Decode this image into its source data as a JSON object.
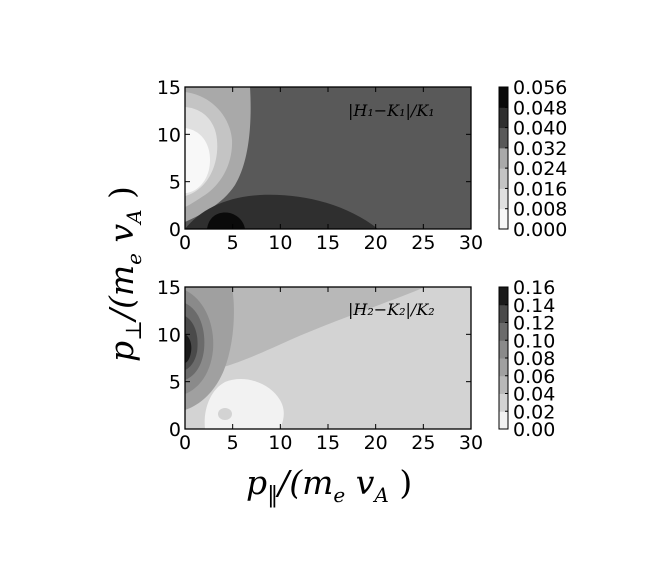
{
  "chart_data": [
    {
      "type": "heatmap",
      "panel": "top",
      "annotation": "|H₁−K₁|/K₁",
      "xlim": [
        0,
        30
      ],
      "ylim": [
        0,
        15
      ],
      "xticks": [
        "0",
        "5",
        "10",
        "15",
        "20",
        "25",
        "30"
      ],
      "yticks": [
        "0",
        "5",
        "10",
        "15"
      ],
      "colorbar": {
        "levels": [
          0.0,
          0.008,
          0.016,
          0.024,
          0.032,
          0.04,
          0.048,
          0.056
        ],
        "tick_labels": [
          "0.000",
          "0.008",
          "0.016",
          "0.024",
          "0.032",
          "0.040",
          "0.048",
          "0.056"
        ]
      },
      "background_level": 0.04,
      "regions": [
        {
          "level": 0.024,
          "description": "lighter lobe near p_par 0-7, p_perp 4-15"
        },
        {
          "level": 0.016,
          "description": "inner lobe near p_par 0-4, p_perp 6-14"
        },
        {
          "level": 0.008,
          "description": "core near p_par 0-2, p_perp 7-12"
        },
        {
          "level": 0.048,
          "description": "dark band near p_par 2-20, p_perp 0-4"
        },
        {
          "level": 0.056,
          "description": "darkest spot near p_par 4, p_perp 0.8"
        }
      ]
    },
    {
      "type": "heatmap",
      "panel": "bottom",
      "annotation": "|H₂−K₂|/K₂",
      "xlim": [
        0,
        30
      ],
      "ylim": [
        0,
        15
      ],
      "xticks": [
        "0",
        "5",
        "10",
        "15",
        "20",
        "25",
        "30"
      ],
      "yticks": [
        "0",
        "5",
        "10",
        "15"
      ],
      "colorbar": {
        "levels": [
          0.0,
          0.02,
          0.04,
          0.06,
          0.08,
          0.1,
          0.12,
          0.14,
          0.16
        ],
        "tick_labels": [
          "0.00",
          "0.02",
          "0.04",
          "0.06",
          "0.08",
          "0.10",
          "0.12",
          "0.14",
          "0.16"
        ]
      },
      "background_level": 0.02,
      "regions": [
        {
          "level": 0.04,
          "description": "wedge above diagonal from origin to top-right"
        },
        {
          "level": 0.06,
          "description": "lobe near p_par 0-5, p_perp 2-15"
        },
        {
          "level": 0.08,
          "description": "lobe near p_par 0-3, p_perp 4-13"
        },
        {
          "level": 0.1,
          "description": "lobe near p_par 0-2, p_perp 5-11"
        },
        {
          "level": 0.12,
          "description": "lobe near p_par 0-1, p_perp 6-10"
        },
        {
          "level": 0.14,
          "description": "core near p_par 0, p_perp 8"
        },
        {
          "level": 0.0,
          "description": "low region near p_par 2-10, p_perp 0-5"
        },
        {
          "level": 0.02,
          "description": "small spot near p_par 4, p_perp 1.5"
        }
      ]
    }
  ],
  "labels": {
    "ylabel_main": "p",
    "ylabel_sub": "⊥",
    "ylabel_rest": "/(m",
    "ylabel_e": "e",
    "ylabel_v": " v",
    "ylabel_A": "A",
    "ylabel_close": " )",
    "xlabel_main": "p",
    "xlabel_sub": "‖",
    "xlabel_rest": "/(m",
    "xlabel_e": "e",
    "xlabel_v": " v",
    "xlabel_A": "A",
    "xlabel_close": " )"
  },
  "palette": {
    "top": [
      "#f8f8f8",
      "#e0e0e0",
      "#c4c4c4",
      "#a9a9a9",
      "#595959",
      "#2f2f2f",
      "#0a0a0a"
    ],
    "bottom": [
      "#f2f2f2",
      "#d3d3d3",
      "#b8b8b8",
      "#a0a0a0",
      "#8a8a8a",
      "#6b6b6b",
      "#4a4a4a",
      "#1a1a1a"
    ]
  }
}
